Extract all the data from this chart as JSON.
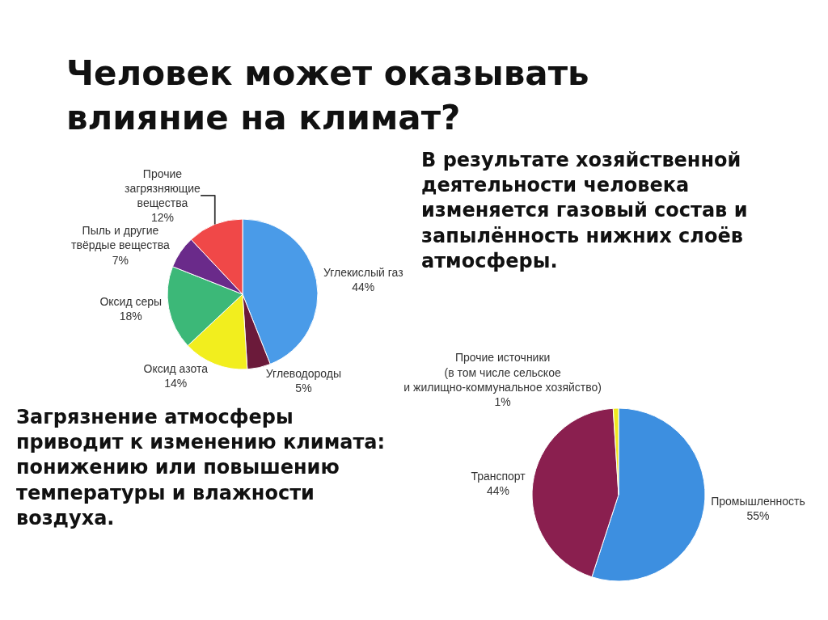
{
  "chart_data": [
    {
      "type": "pie",
      "title": "Человек может оказывать\nвлияние на климат?",
      "categories": [
        "Углекислый газ",
        "Углеводороды",
        "Оксид азота",
        "Оксид серы",
        "Пыль и другие\nтвёрдые вещества",
        "Прочие\nзагрязняющие\nвещества"
      ],
      "values": [
        44,
        5,
        14,
        18,
        7,
        12
      ],
      "value_labels": [
        "44%",
        "5%",
        "14%",
        "18%",
        "7%",
        "12%"
      ],
      "colors": [
        "#4a9be8",
        "#6b1a3a",
        "#f2ee1e",
        "#3cb878",
        "#6a2a8a",
        "#f04848"
      ],
      "annotations": [
        "Загрязнение атмосферы\nприводит к изменению климата:\nпонижению или повышению\nтемпературы и влажности\nвоздуха."
      ]
    },
    {
      "type": "pie",
      "categories": [
        "Промышленность",
        "Транспорт",
        "Прочие источники\n(в том числе сельское\nи жилищно-коммунальное хозяйство)"
      ],
      "values": [
        55,
        44,
        1
      ],
      "value_labels": [
        "55%",
        "44%",
        "1%"
      ],
      "colors": [
        "#3d8fe0",
        "#8a1f4f",
        "#f0e820"
      ],
      "annotations": [
        "В результате хозяйственной\nдеятельности человека\nизменяется газовый состав и\nзапылённость нижних слоёв\nатмосферы."
      ]
    }
  ]
}
